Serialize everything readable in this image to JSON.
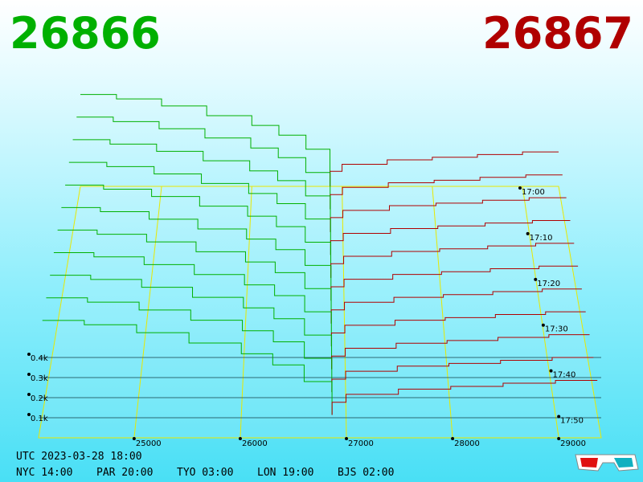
{
  "chart_data": {
    "type": "depth3d",
    "bid_label": "26866",
    "ask_label": "26867",
    "bid_color": "#00b000",
    "ask_color": "#b00000",
    "bid_prices": [
      24100,
      24500,
      25000,
      25500,
      26000,
      26300,
      26600,
      26866
    ],
    "ask_prices": [
      26867,
      27000,
      27500,
      28000,
      28500,
      29000,
      29400
    ],
    "xlim": [
      24100,
      29400
    ],
    "xticks": [
      25000,
      26000,
      27000,
      28000,
      29000
    ],
    "ylim": [
      0,
      560
    ],
    "yticks": [
      {
        "value": 100,
        "label": "0.1k"
      },
      {
        "value": 200,
        "label": "0.2k"
      },
      {
        "value": 300,
        "label": "0.3k"
      },
      {
        "value": 400,
        "label": "0.4k"
      }
    ],
    "zlim": [
      0,
      55
    ],
    "zticks": [
      {
        "value": 0,
        "label": "17:00"
      },
      {
        "value": 10,
        "label": "17:10"
      },
      {
        "value": 20,
        "label": "17:20"
      },
      {
        "value": 30,
        "label": "17:30"
      },
      {
        "value": 40,
        "label": "17:40"
      },
      {
        "value": 50,
        "label": "17:50"
      }
    ],
    "snapshots": [
      {
        "time": 0,
        "bids": [
          520,
          495,
          455,
          400,
          345,
          290,
          210,
          0
        ],
        "asks": [
          0,
          85,
          125,
          150,
          165,
          180,
          195
        ]
      },
      {
        "time": 5,
        "bids": [
          515,
          490,
          450,
          398,
          342,
          288,
          205,
          0
        ],
        "asks": [
          0,
          82,
          122,
          148,
          162,
          178,
          192
        ]
      },
      {
        "time": 10,
        "bids": [
          510,
          486,
          446,
          394,
          338,
          284,
          200,
          0
        ],
        "asks": [
          0,
          80,
          120,
          146,
          160,
          176,
          190
        ]
      },
      {
        "time": 15,
        "bids": [
          505,
          482,
          442,
          390,
          335,
          280,
          196,
          0
        ],
        "asks": [
          0,
          78,
          118,
          144,
          158,
          174,
          188
        ]
      },
      {
        "time": 20,
        "bids": [
          500,
          478,
          438,
          386,
          332,
          276,
          192,
          0
        ],
        "asks": [
          0,
          76,
          116,
          142,
          156,
          172,
          186
        ]
      },
      {
        "time": 25,
        "bids": [
          496,
          474,
          434,
          382,
          328,
          272,
          188,
          0
        ],
        "asks": [
          0,
          74,
          114,
          140,
          154,
          170,
          184
        ]
      },
      {
        "time": 30,
        "bids": [
          492,
          470,
          430,
          378,
          324,
          268,
          184,
          0
        ],
        "asks": [
          0,
          72,
          112,
          138,
          152,
          168,
          182
        ]
      },
      {
        "time": 35,
        "bids": [
          488,
          466,
          426,
          374,
          320,
          264,
          180,
          0
        ],
        "asks": [
          0,
          70,
          110,
          136,
          150,
          166,
          180
        ]
      },
      {
        "time": 40,
        "bids": [
          484,
          462,
          422,
          370,
          316,
          260,
          176,
          0
        ],
        "asks": [
          0,
          68,
          108,
          134,
          148,
          164,
          178
        ]
      },
      {
        "time": 45,
        "bids": [
          480,
          458,
          418,
          366,
          312,
          256,
          172,
          0
        ],
        "asks": [
          0,
          66,
          106,
          132,
          146,
          162,
          176
        ]
      },
      {
        "time": 50,
        "bids": [
          476,
          454,
          414,
          362,
          308,
          252,
          168,
          0
        ],
        "asks": [
          0,
          64,
          104,
          130,
          144,
          160,
          174
        ]
      }
    ]
  },
  "footer": {
    "utc": "UTC 2023-03-28 18:00",
    "zones": [
      "NYC 14:00",
      "PAR 20:00",
      "TYO 03:00",
      "LON 19:00",
      "BJS 02:00"
    ]
  }
}
